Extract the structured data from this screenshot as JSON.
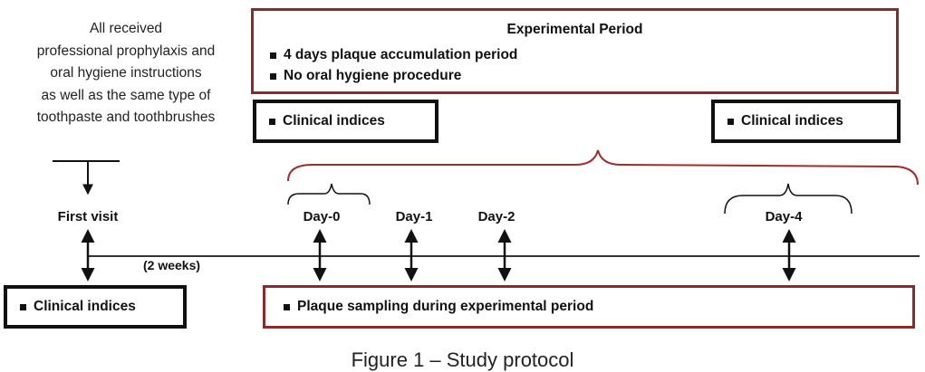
{
  "intro_lines": [
    "All received",
    "professional prophylaxis and",
    "oral hygiene instructions",
    "as well as the same type of",
    "toothpaste and toothbrushes"
  ],
  "experimental_box": {
    "title": "Experimental Period",
    "bullets": [
      "4 days plaque accumulation period",
      "No oral hygiene procedure"
    ]
  },
  "clinical_indices_label": "Clinical indices",
  "plaque_box_label": "Plaque sampling during experimental period",
  "timeline": {
    "first_visit": "First visit",
    "interval": "(2 weeks)",
    "days": [
      "Day-0",
      "Day-1",
      "Day-2",
      "Day-4"
    ]
  },
  "caption": "Figure 1 – Study protocol",
  "colors": {
    "red_border": "#8b2a2a",
    "black_border": "#111111",
    "brace_red": "#a52a2a"
  }
}
